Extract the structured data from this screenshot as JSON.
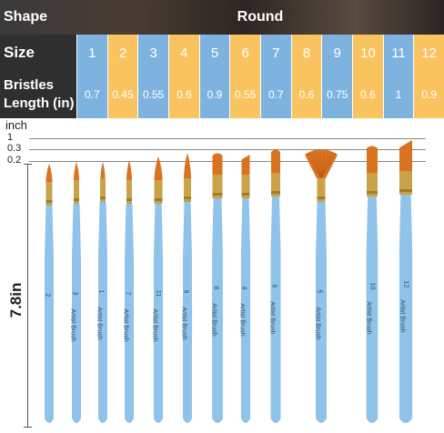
{
  "table": {
    "shape_header": "Shape",
    "shape_value": "Round",
    "size_header": "Size",
    "bristle_header_line1": "Bristles",
    "bristle_header_line2": "Length (in)",
    "sizes": [
      "1",
      "2",
      "3",
      "4",
      "5",
      "6",
      "7",
      "8",
      "9",
      "10",
      "11",
      "12"
    ],
    "bristle_lengths": [
      "0.7",
      "0.45",
      "0.55",
      "0.6",
      "0.9",
      "0.55",
      "0.7",
      "0.6",
      "0.75",
      "0.6",
      "1",
      "0.9"
    ],
    "colors": {
      "blue": "#7fb3df",
      "yellow": "#f9c360"
    }
  },
  "ruler": {
    "unit": "inch",
    "marks": [
      "1",
      "0.3",
      "0.2"
    ]
  },
  "dimension": {
    "length_label": "7.8in"
  },
  "brushes": [
    {
      "size": "2",
      "brand": ""
    },
    {
      "size": "3",
      "brand": "Artist Brush"
    },
    {
      "size": "1",
      "brand": "Artist Brush"
    },
    {
      "size": "7",
      "brand": "Artist Brush"
    },
    {
      "size": "11",
      "brand": "Artist Brush"
    },
    {
      "size": "9",
      "brand": "Artist Brush"
    },
    {
      "size": "8",
      "brand": "Artist Brush"
    },
    {
      "size": "4",
      "brand": "Artist Brush"
    },
    {
      "size": "6",
      "brand": "Artist Brush"
    },
    {
      "size": "5",
      "brand": "Artist Brush"
    },
    {
      "size": "10",
      "brand": "Artist Brush"
    },
    {
      "size": "12",
      "brand": "Artist Brush"
    }
  ]
}
